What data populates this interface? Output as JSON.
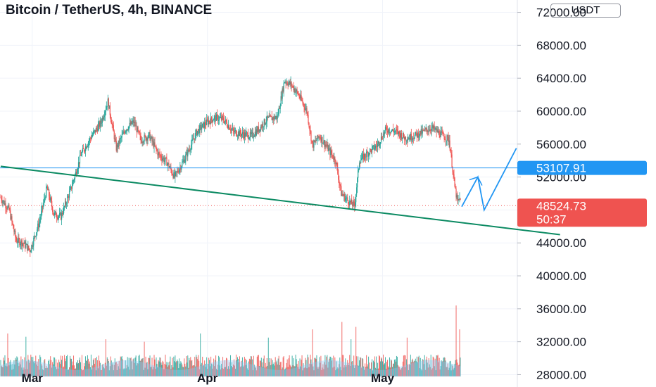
{
  "header": {
    "title": "Bitcoin / TetherUS, 4h, BINANCE",
    "currency": "USDT"
  },
  "colors": {
    "up": "#26a69a",
    "down": "#ef5350",
    "trendline": "#0b8a62",
    "projection": "#2196f3",
    "level_line": "#2196f3",
    "price_tag": "#ef5350",
    "level_tag": "#2196f3",
    "volume_ma": "#90caf9"
  },
  "chart_data": {
    "type": "candlestick",
    "title": "Bitcoin / TetherUS, 4h, BINANCE",
    "y_axis_label": "USDT",
    "y_ticks": [
      72000,
      68000,
      64000,
      60000,
      56000,
      52000,
      48000,
      44000,
      40000,
      36000,
      32000,
      28000
    ],
    "y_tick_labels": [
      "72000.00",
      "68000.00",
      "64000.00",
      "60000.00",
      "56000.00",
      "52000.00",
      "48000.00",
      "44000.00",
      "40000.00",
      "36000.00",
      "32000.00",
      "28000.00"
    ],
    "y_range": [
      26500,
      73500
    ],
    "x_labels": [
      {
        "label": "Mar",
        "candle_index": 45
      },
      {
        "label": "Apr",
        "candle_index": 295
      },
      {
        "label": "May",
        "candle_index": 545
      }
    ],
    "candles_total": 660,
    "price_path": [
      [
        0,
        49500
      ],
      [
        12,
        48000
      ],
      [
        22,
        44300
      ],
      [
        32,
        44000
      ],
      [
        42,
        43100
      ],
      [
        55,
        46500
      ],
      [
        66,
        50700
      ],
      [
        76,
        47500
      ],
      [
        86,
        47200
      ],
      [
        100,
        50500
      ],
      [
        115,
        54800
      ],
      [
        130,
        57000
      ],
      [
        143,
        58600
      ],
      [
        153,
        61200
      ],
      [
        165,
        55500
      ],
      [
        178,
        57800
      ],
      [
        190,
        58700
      ],
      [
        200,
        56500
      ],
      [
        212,
        57000
      ],
      [
        225,
        54800
      ],
      [
        237,
        53800
      ],
      [
        248,
        52000
      ],
      [
        258,
        53500
      ],
      [
        268,
        55200
      ],
      [
        280,
        57500
      ],
      [
        292,
        58500
      ],
      [
        305,
        59200
      ],
      [
        318,
        59000
      ],
      [
        332,
        57500
      ],
      [
        345,
        57200
      ],
      [
        358,
        57000
      ],
      [
        368,
        57800
      ],
      [
        380,
        59000
      ],
      [
        395,
        59300
      ],
      [
        405,
        63700
      ],
      [
        415,
        63200
      ],
      [
        425,
        62000
      ],
      [
        437,
        60000
      ],
      [
        445,
        55800
      ],
      [
        455,
        57000
      ],
      [
        468,
        55300
      ],
      [
        478,
        54000
      ],
      [
        486,
        50000
      ],
      [
        497,
        49000
      ],
      [
        505,
        48500
      ],
      [
        512,
        54000
      ],
      [
        525,
        55000
      ],
      [
        537,
        55800
      ],
      [
        550,
        57800
      ],
      [
        565,
        57500
      ],
      [
        578,
        56700
      ],
      [
        590,
        57000
      ],
      [
        603,
        57500
      ],
      [
        615,
        58000
      ],
      [
        628,
        57200
      ],
      [
        640,
        56500
      ],
      [
        648,
        50800
      ],
      [
        652,
        48900
      ],
      [
        656,
        49500
      ]
    ],
    "volumes": {
      "baseline": 27800,
      "typical_top": 30200,
      "spikes": [
        [
          10,
          33000
        ],
        [
          36,
          32600
        ],
        [
          150,
          32300
        ],
        [
          205,
          32000
        ],
        [
          285,
          33000
        ],
        [
          382,
          32500
        ],
        [
          445,
          33500
        ],
        [
          487,
          34400
        ],
        [
          500,
          32300
        ],
        [
          507,
          33800
        ],
        [
          580,
          32500
        ],
        [
          650,
          36400
        ],
        [
          655,
          33500
        ]
      ]
    },
    "drawings": {
      "trendline": {
        "from": [
          0,
          53300
        ],
        "to": [
          738,
          45000
        ]
      },
      "horizontal_level": 53107.91,
      "current_price_line": 48524.73,
      "projection_path": [
        [
          658,
          48400
        ],
        [
          681,
          52000
        ],
        [
          690,
          48000
        ],
        [
          736,
          55500
        ]
      ]
    },
    "price_labels": {
      "level": "53107.91",
      "last_price": "48524.73",
      "countdown": "50:37"
    }
  }
}
